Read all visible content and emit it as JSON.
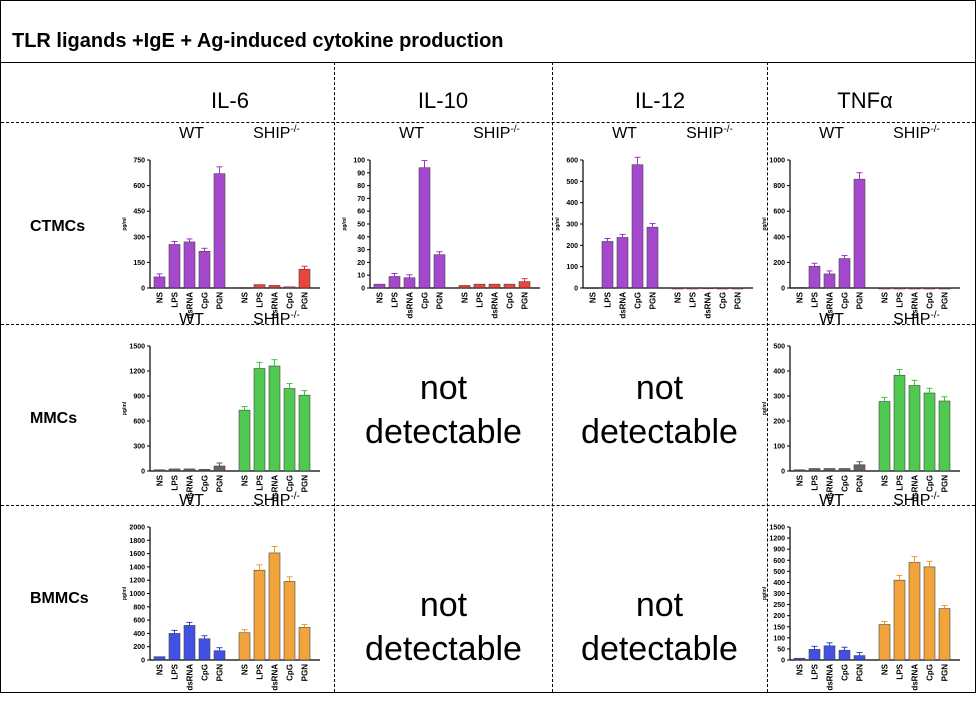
{
  "title": "TLR ligands +IgE + Ag-induced cytokine production",
  "columns": [
    "IL-6",
    "IL-10",
    "IL-12",
    "TNFα"
  ],
  "rows": [
    "CTMCs",
    "MMCs",
    "BMMCs"
  ],
  "not_detectable": [
    "not",
    "detectable"
  ],
  "chart_data": [
    {
      "type": "bar",
      "row": "CTMCs",
      "column": "IL-6",
      "ylabel": "pg/ml",
      "ylim": [
        0,
        750
      ],
      "yticks": [
        "0",
        "150",
        "300",
        "450",
        "600",
        "750"
      ],
      "categories": [
        "NS",
        "LPS",
        "dsRNA",
        "CpG",
        "PGN"
      ],
      "series": [
        {
          "name": "WT",
          "color": "#9b36c8",
          "values": [
            65,
            255,
            270,
            215,
            670
          ]
        },
        {
          "name": "SHIP-/-",
          "color": "#e8332a",
          "values": [
            3,
            20,
            15,
            7,
            110
          ]
        }
      ]
    },
    {
      "type": "bar",
      "row": "CTMCs",
      "column": "IL-10",
      "ylabel": "pg/ml",
      "ylim": [
        0,
        100
      ],
      "yticks": [
        "0",
        "10",
        "20",
        "30",
        "40",
        "50",
        "60",
        "70",
        "80",
        "90",
        "100"
      ],
      "categories": [
        "NS",
        "LPS",
        "dsRNA",
        "CpG",
        "PGN"
      ],
      "series": [
        {
          "name": "WT",
          "color": "#9b36c8",
          "values": [
            3,
            9,
            8,
            94,
            26
          ]
        },
        {
          "name": "SHIP-/-",
          "color": "#e8332a",
          "values": [
            2,
            3,
            3,
            3,
            5
          ]
        }
      ]
    },
    {
      "type": "bar",
      "row": "CTMCs",
      "column": "IL-12",
      "ylabel": "pg/ml",
      "ylim": [
        0,
        600
      ],
      "yticks": [
        "0",
        "100",
        "200",
        "300",
        "400",
        "500",
        "600"
      ],
      "categories": [
        "NS",
        "LPS",
        "dsRNA",
        "CpG",
        "PGN"
      ],
      "series": [
        {
          "name": "WT",
          "color": "#9b36c8",
          "values": [
            2,
            218,
            237,
            578,
            285
          ]
        },
        {
          "name": "SHIP-/-",
          "color": "#e8332a",
          "values": [
            0,
            0,
            1,
            0,
            0
          ]
        }
      ]
    },
    {
      "type": "bar",
      "row": "CTMCs",
      "column": "TNFα",
      "ylabel": "pg/ml",
      "ylim": [
        0,
        1000
      ],
      "yticks": [
        "0",
        "200",
        "400",
        "600",
        "800",
        "1000"
      ],
      "categories": [
        "NS",
        "LPS",
        "dsRNA",
        "CpG",
        "PGN"
      ],
      "series": [
        {
          "name": "WT",
          "color": "#9b36c8",
          "values": [
            5,
            170,
            110,
            230,
            850
          ]
        },
        {
          "name": "SHIP-/-",
          "color": "#e8332a",
          "values": [
            0,
            0,
            0,
            0,
            0
          ]
        }
      ]
    },
    {
      "type": "bar",
      "row": "MMCs",
      "column": "IL-6",
      "ylabel": "pg/ml",
      "ylim": [
        0,
        1500
      ],
      "yticks": [
        "0",
        "300",
        "600",
        "900",
        "1200",
        "1500"
      ],
      "categories": [
        "NS",
        "LPS",
        "dsRNA",
        "CpG",
        "PGN"
      ],
      "series": [
        {
          "name": "WT",
          "color": "#555555",
          "values": [
            15,
            25,
            25,
            20,
            60
          ]
        },
        {
          "name": "SHIP-/-",
          "color": "#3cc43c",
          "values": [
            730,
            1230,
            1260,
            990,
            910
          ]
        }
      ]
    },
    {
      "type": "bar",
      "row": "MMCs",
      "column": "TNFα",
      "ylabel": "pg/ml",
      "ylim": [
        0,
        500
      ],
      "yticks": [
        "0",
        "100",
        "200",
        "300",
        "400",
        "500"
      ],
      "categories": [
        "NS",
        "LPS",
        "dsRNA",
        "CpG",
        "PGN"
      ],
      "series": [
        {
          "name": "WT",
          "color": "#555555",
          "values": [
            5,
            10,
            10,
            10,
            25
          ]
        },
        {
          "name": "SHIP-/-",
          "color": "#3cc43c",
          "values": [
            278,
            383,
            342,
            312,
            280
          ]
        }
      ]
    },
    {
      "type": "bar",
      "row": "BMMCs",
      "column": "IL-6",
      "ylabel": "pg/ml",
      "ylim": [
        0,
        2000
      ],
      "yticks": [
        "0",
        "200",
        "400",
        "600",
        "800",
        "1000",
        "1200",
        "1400",
        "1600",
        "1800",
        "2000"
      ],
      "categories": [
        "NS",
        "LPS",
        "dsRNA",
        "CpG",
        "PGN"
      ],
      "series": [
        {
          "name": "WT",
          "color": "#2e3fe0",
          "values": [
            50,
            400,
            520,
            320,
            140
          ]
        },
        {
          "name": "SHIP-/-",
          "color": "#f09a28",
          "values": [
            410,
            1350,
            1610,
            1180,
            490
          ]
        }
      ]
    },
    {
      "type": "bar",
      "row": "BMMCs",
      "column": "TNFα",
      "ylabel": "pg/ml",
      "ylim": [
        0,
        1500
      ],
      "yticks": [
        "0",
        "50",
        "100",
        "150",
        "200",
        "250",
        "300",
        "400",
        "500",
        "600",
        "900",
        "1200",
        "1500"
      ],
      "categories": [
        "NS",
        "LPS",
        "dsRNA",
        "CpG",
        "PGN"
      ],
      "series": [
        {
          "name": "WT",
          "color": "#2e3fe0",
          "values": [
            20,
            120,
            160,
            110,
            50
          ]
        },
        {
          "name": "SHIP-/-",
          "color": "#f09a28",
          "values": [
            400,
            900,
            1100,
            1050,
            580
          ]
        }
      ]
    }
  ]
}
